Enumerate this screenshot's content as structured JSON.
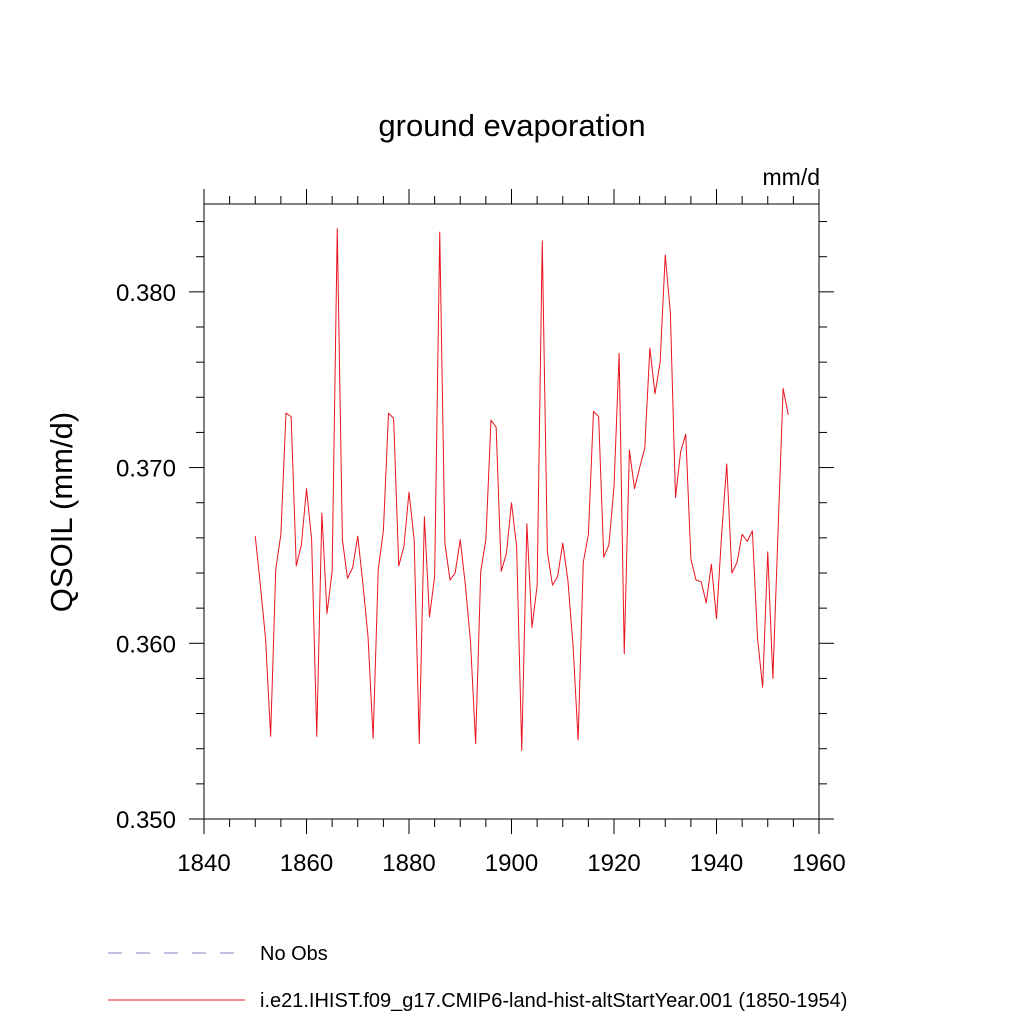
{
  "chart_data": {
    "type": "line",
    "title": "ground evaporation",
    "units": "mm/d",
    "xlabel": "",
    "ylabel": "QSOIL  (mm/d)",
    "xlim": [
      1840,
      1960
    ],
    "ylim": [
      0.35,
      0.385
    ],
    "x_ticks": [
      1840,
      1860,
      1880,
      1900,
      1920,
      1940,
      1960
    ],
    "x_tick_labels": [
      "1840",
      "1860",
      "1880",
      "1900",
      "1920",
      "1940",
      "1960"
    ],
    "y_ticks": [
      0.35,
      0.36,
      0.37,
      0.38
    ],
    "y_tick_labels": [
      "0.350",
      "0.360",
      "0.370",
      "0.380"
    ],
    "x_minor_step": 5,
    "y_minor_step": 0.002,
    "grid": false,
    "legend_position": "bottom",
    "legend": [
      {
        "label": "No Obs",
        "color": "#8080c0",
        "style": "dashed"
      },
      {
        "label": "i.e21.IHIST.f09_g17.CMIP6-land-hist-altStartYear.001 (1850-1954)",
        "color": "#e8141e",
        "style": "solid"
      }
    ],
    "series": [
      {
        "name": "i.e21.IHIST.f09_g17.CMIP6-land-hist-altStartYear.001 (1850-1954)",
        "color": "#e8141e",
        "x": [
          1850,
          1851,
          1852,
          1853,
          1854,
          1855,
          1856,
          1857,
          1858,
          1859,
          1860,
          1861,
          1862,
          1863,
          1864,
          1865,
          1866,
          1867,
          1868,
          1869,
          1870,
          1871,
          1872,
          1873,
          1874,
          1875,
          1876,
          1877,
          1878,
          1879,
          1880,
          1881,
          1882,
          1883,
          1884,
          1885,
          1886,
          1887,
          1888,
          1889,
          1890,
          1891,
          1892,
          1893,
          1894,
          1895,
          1896,
          1897,
          1898,
          1899,
          1900,
          1901,
          1902,
          1903,
          1904,
          1905,
          1906,
          1907,
          1908,
          1909,
          1910,
          1911,
          1912,
          1913,
          1914,
          1915,
          1916,
          1917,
          1918,
          1919,
          1920,
          1921,
          1922,
          1923,
          1924,
          1925,
          1926,
          1927,
          1928,
          1929,
          1930,
          1931,
          1932,
          1933,
          1934,
          1935,
          1936,
          1937,
          1938,
          1939,
          1940,
          1941,
          1942,
          1943,
          1944,
          1945,
          1946,
          1947,
          1948,
          1949,
          1950,
          1951,
          1952,
          1953,
          1954
        ],
        "y": [
          0.3661,
          0.3633,
          0.3603,
          0.3547,
          0.3642,
          0.3662,
          0.3731,
          0.3729,
          0.3644,
          0.3656,
          0.3688,
          0.3659,
          0.3547,
          0.3674,
          0.3617,
          0.3641,
          0.3836,
          0.3659,
          0.3637,
          0.3643,
          0.3661,
          0.3634,
          0.3604,
          0.3546,
          0.3642,
          0.3664,
          0.3731,
          0.3728,
          0.3644,
          0.3655,
          0.3686,
          0.3659,
          0.3543,
          0.3672,
          0.3615,
          0.3638,
          0.3834,
          0.3657,
          0.3636,
          0.364,
          0.3659,
          0.3633,
          0.3601,
          0.3543,
          0.3641,
          0.3659,
          0.3727,
          0.3723,
          0.3641,
          0.3651,
          0.368,
          0.3655,
          0.3539,
          0.3668,
          0.3609,
          0.3633,
          0.3829,
          0.3652,
          0.3633,
          0.3638,
          0.3657,
          0.3636,
          0.3599,
          0.3545,
          0.3646,
          0.3662,
          0.3732,
          0.3729,
          0.3649,
          0.3656,
          0.3689,
          0.3765,
          0.3594,
          0.371,
          0.3688,
          0.37,
          0.3711,
          0.3768,
          0.3742,
          0.376,
          0.3821,
          0.3788,
          0.3683,
          0.3709,
          0.3719,
          0.3648,
          0.3636,
          0.3635,
          0.3623,
          0.3645,
          0.3614,
          0.3662,
          0.3702,
          0.364,
          0.3646,
          0.3662,
          0.3658,
          0.3664,
          0.3603,
          0.3575,
          0.3652,
          0.358,
          0.3663,
          0.3745,
          0.373
        ]
      }
    ]
  }
}
